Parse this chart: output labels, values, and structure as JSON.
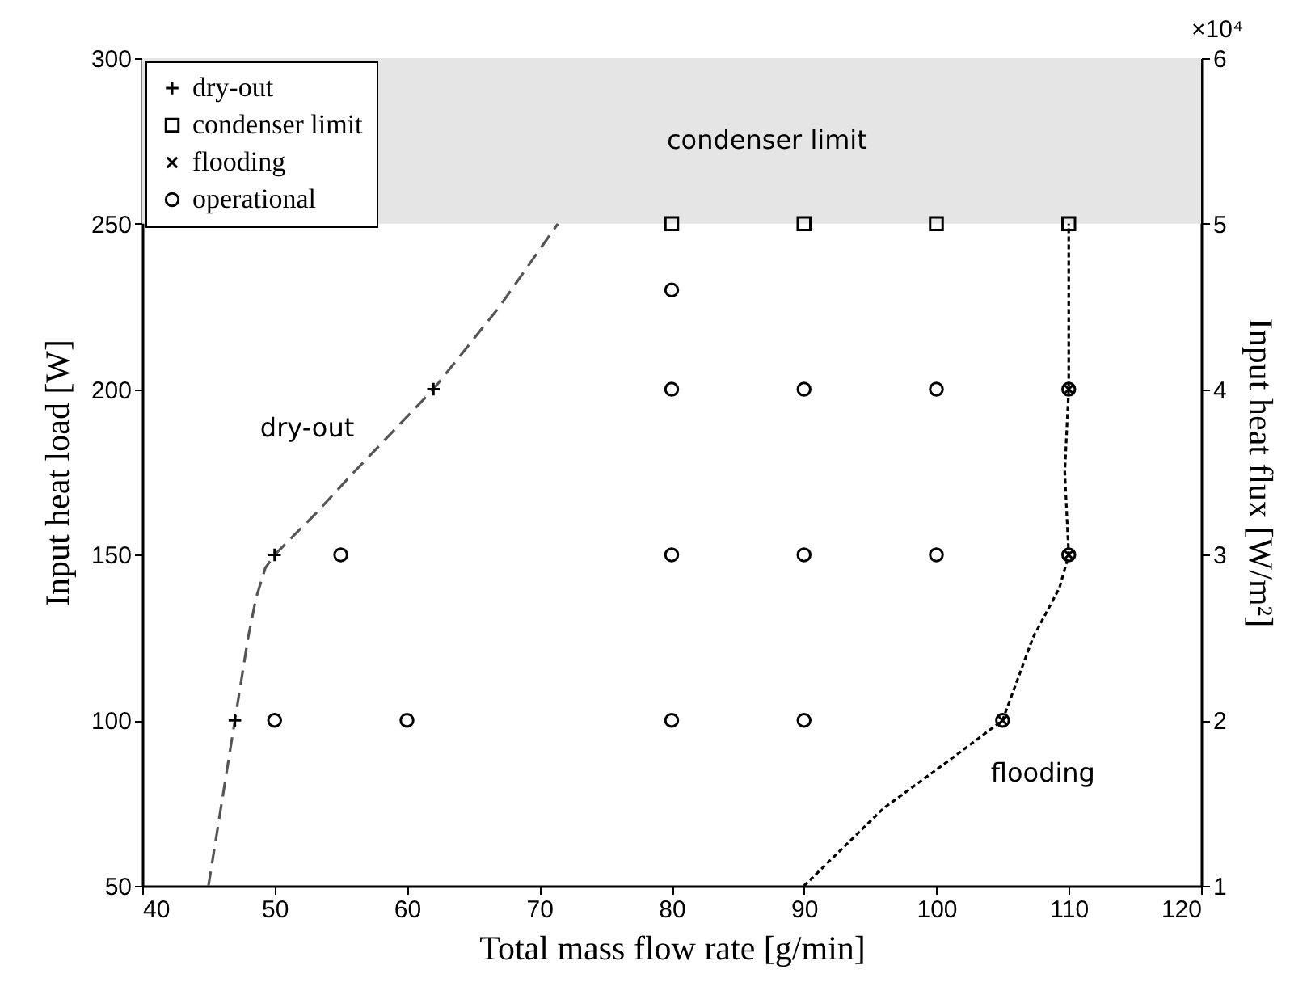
{
  "chart_data": {
    "type": "scatter",
    "xlabel": "Total mass flow rate [g/min]",
    "ylabel": "Input heat load [W]",
    "y2label": "Input heat flux [W/m²]",
    "xlim": [
      40,
      120
    ],
    "xticks": [
      40,
      50,
      60,
      70,
      80,
      90,
      100,
      110,
      120
    ],
    "ylim": [
      50,
      300
    ],
    "yticks": [
      50,
      100,
      150,
      200,
      250,
      300
    ],
    "y2lim": [
      1,
      6
    ],
    "y2ticks": [
      1,
      2,
      3,
      4,
      5,
      6
    ],
    "legend": "top left",
    "grid": false,
    "bands": [
      {
        "axis": "y",
        "from": 250,
        "to": 300,
        "label": "condenser limit",
        "color": "#e5e5e5"
      }
    ],
    "annotations": [
      "×10⁴"
    ],
    "series": [
      {
        "name": "dry-out",
        "color": "#000000",
        "marker": "cross",
        "x": [
          47,
          50,
          62
        ],
        "values": [
          100,
          150,
          200
        ]
      },
      {
        "name": "condenser limit",
        "color": "#000000",
        "marker": "square",
        "x": [
          80,
          90,
          100,
          110
        ],
        "values": [
          250,
          250,
          250,
          250
        ]
      },
      {
        "name": "flooding",
        "color": "#000000",
        "marker": "x",
        "x": [
          105,
          110,
          110
        ],
        "values": [
          100,
          150,
          200
        ]
      },
      {
        "name": "operational",
        "color": "#000000",
        "marker": "circle",
        "x": [
          50,
          60,
          80,
          90,
          105,
          55,
          80,
          90,
          100,
          110,
          80,
          90,
          100,
          110,
          80
        ],
        "values": [
          100,
          100,
          100,
          100,
          100,
          150,
          150,
          150,
          150,
          150,
          200,
          200,
          200,
          200,
          230
        ]
      },
      {
        "type": "line",
        "name": "dry-out",
        "color": "#555555",
        "line_style": "dashed",
        "marker": "none",
        "x": [
          45,
          46,
          47,
          48,
          48.6,
          49.3,
          50,
          53,
          56,
          62,
          67,
          71.4
        ],
        "values": [
          50,
          75,
          100,
          125,
          137,
          146,
          150,
          162,
          175,
          200,
          225,
          250
        ]
      },
      {
        "type": "line",
        "name": "flooding",
        "color": "#000000",
        "line_style": "dotted",
        "marker": "none",
        "x": [
          90,
          96,
          101,
          105,
          107.3,
          109.3,
          110,
          109.7,
          110,
          110
        ],
        "values": [
          50,
          73.4,
          88,
          100,
          125,
          140,
          150,
          175,
          200,
          250
        ]
      }
    ]
  }
}
